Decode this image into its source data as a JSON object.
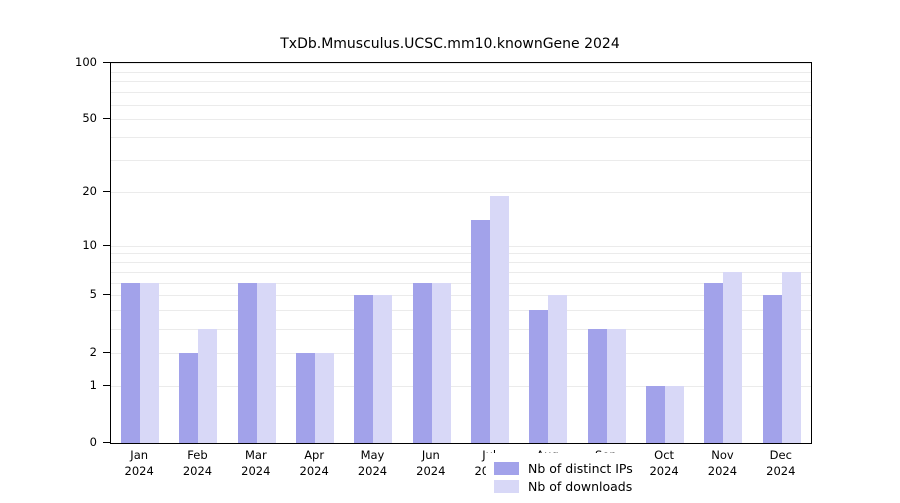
{
  "title": "TxDb.Mmusculus.UCSC.mm10.knownGene 2024",
  "colors": {
    "distinct_ips": "#a2a2ea",
    "downloads": "#d8d8f7",
    "grid": "#ebebeb",
    "axis": "#000000",
    "background": "#ffffff"
  },
  "legend": {
    "items": [
      {
        "label": "Nb of distinct IPs",
        "color_key": "distinct_ips"
      },
      {
        "label": "Nb of downloads",
        "color_key": "downloads"
      }
    ]
  },
  "chart_data": {
    "type": "bar",
    "title": "TxDb.Mmusculus.UCSC.mm10.knownGene 2024",
    "categories": [
      "Jan",
      "Feb",
      "Mar",
      "Apr",
      "May",
      "Jun",
      "Jul",
      "Aug",
      "Sep",
      "Oct",
      "Nov",
      "Dec"
    ],
    "year_label": "2024",
    "series": [
      {
        "name": "Nb of distinct IPs",
        "values": [
          6,
          2,
          6,
          2,
          5,
          6,
          14,
          4,
          3,
          1,
          6,
          5
        ]
      },
      {
        "name": "Nb of downloads",
        "values": [
          6,
          3,
          6,
          2,
          5,
          6,
          19,
          5,
          3,
          1,
          7,
          7
        ]
      }
    ],
    "yticks": [
      0,
      1,
      2,
      5,
      10,
      20,
      50,
      100
    ],
    "minor_gridlines": [
      3,
      4,
      6,
      7,
      8,
      9,
      30,
      40,
      60,
      70,
      80,
      90
    ],
    "scale": "log10(1+x)",
    "ylim": [
      0,
      100
    ],
    "xlabel": "",
    "ylabel": "",
    "grid": true,
    "legend_position": "bottom-center-inside"
  }
}
